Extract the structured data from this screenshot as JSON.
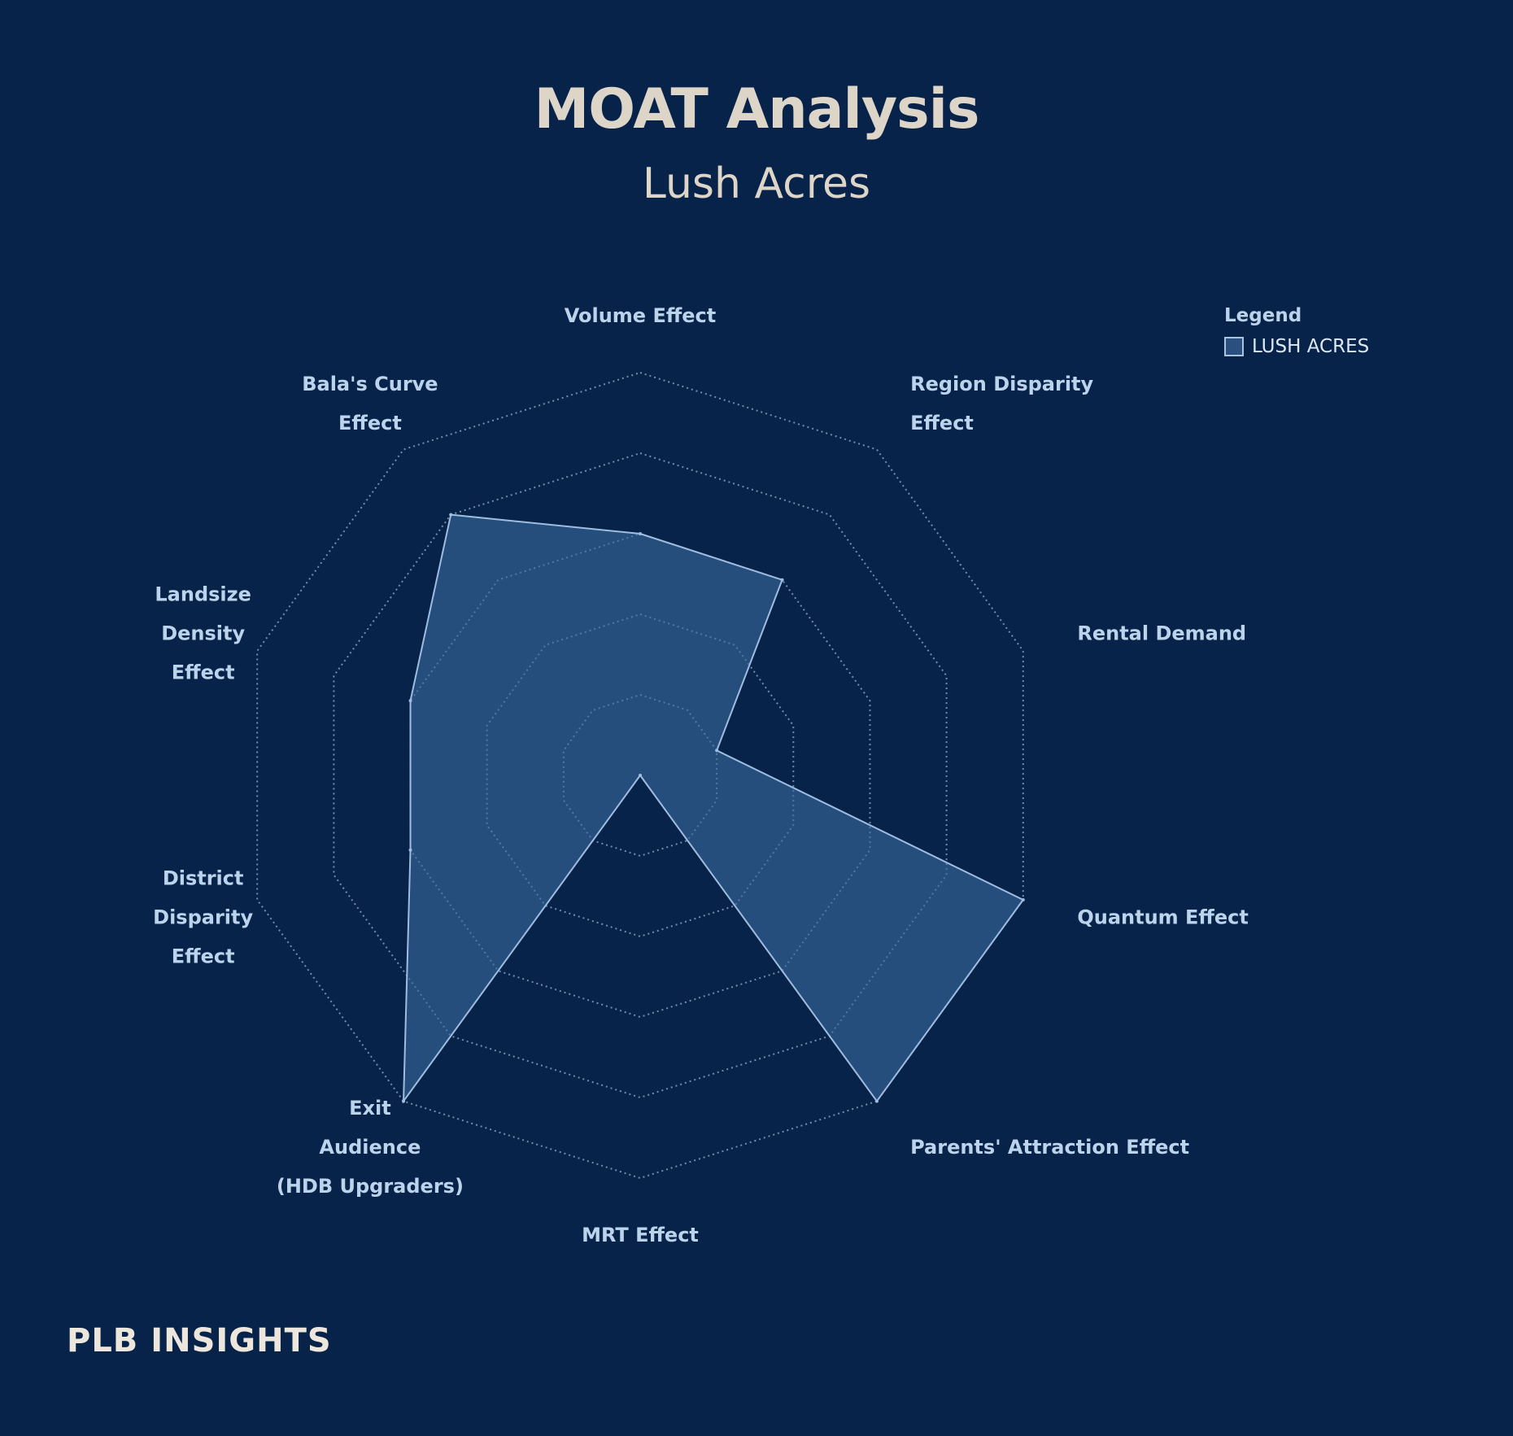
{
  "title": "MOAT Analysis",
  "subtitle": "Lush Acres",
  "legend": {
    "title": "Legend",
    "entries": [
      "LUSH ACRES"
    ]
  },
  "brand": "PLB INSIGHTS",
  "colors": {
    "background": "#08234a",
    "fill": "#3a6a9e",
    "stroke": "#9fbde0",
    "grid": "#9bb0c8",
    "label": "#bcd3ec"
  },
  "chart_data": {
    "type": "radar",
    "rmax": 5,
    "grid_levels": [
      1,
      2,
      3,
      4,
      5
    ],
    "axes": [
      {
        "lines": [
          "Volume Effect"
        ],
        "value": 3
      },
      {
        "lines": [
          "Region Disparity",
          "Effect"
        ],
        "value": 3
      },
      {
        "lines": [
          "Rental Demand"
        ],
        "value": 1
      },
      {
        "lines": [
          "Quantum Effect"
        ],
        "value": 5
      },
      {
        "lines": [
          "Parents' Attraction Effect"
        ],
        "value": 5
      },
      {
        "lines": [
          "MRT Effect"
        ],
        "value": 0
      },
      {
        "lines": [
          "Exit",
          "Audience",
          "(HDB Upgraders)"
        ],
        "value": 5
      },
      {
        "lines": [
          "District",
          "Disparity",
          "Effect"
        ],
        "value": 3
      },
      {
        "lines": [
          "Landsize",
          "Density",
          "Effect"
        ],
        "value": 3
      },
      {
        "lines": [
          "Bala's Curve",
          "Effect"
        ],
        "value": 4
      }
    ],
    "series": [
      {
        "name": "LUSH ACRES"
      }
    ]
  }
}
